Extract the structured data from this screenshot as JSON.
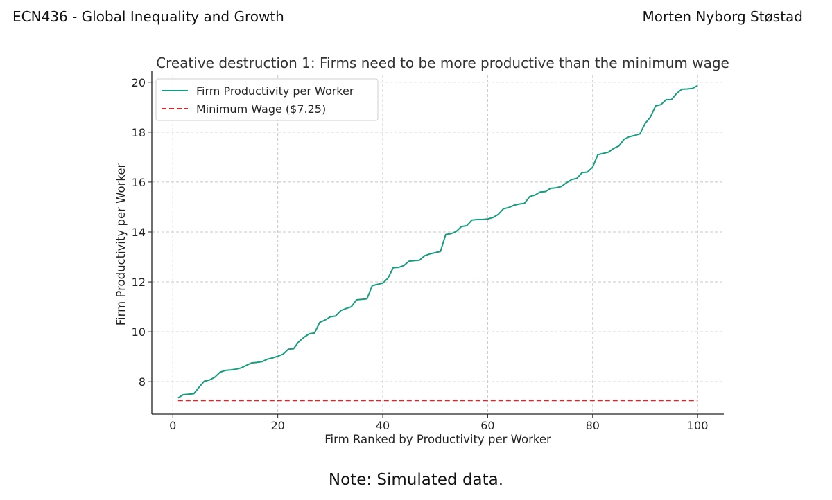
{
  "header": {
    "course": "ECN436 - Global Inequality and Growth",
    "author": "Morten Nyborg Støstad"
  },
  "note": "Note: Simulated data.",
  "chart_data": {
    "type": "line",
    "title": "Creative destruction 1: Firms need to be more productive than the minimum wage",
    "xlabel": "Firm Ranked by Productivity per Worker",
    "ylabel": "Firm Productivity per Worker",
    "xlim": [
      -4,
      105
    ],
    "ylim": [
      6.7,
      20.3
    ],
    "xticks": [
      0,
      20,
      40,
      60,
      80,
      100
    ],
    "yticks": [
      8,
      10,
      12,
      14,
      16,
      18,
      20
    ],
    "grid": true,
    "legend_position": "top-left",
    "series": [
      {
        "name": "Firm Productivity per Worker",
        "color": "#179c7d",
        "style": "solid",
        "x": [
          1,
          2,
          3,
          4,
          5,
          6,
          7,
          8,
          9,
          10,
          11,
          12,
          13,
          14,
          15,
          16,
          17,
          18,
          19,
          20,
          21,
          22,
          23,
          24,
          25,
          26,
          27,
          28,
          29,
          30,
          31,
          32,
          33,
          34,
          35,
          36,
          37,
          38,
          39,
          40,
          41,
          42,
          43,
          44,
          45,
          46,
          47,
          48,
          49,
          50,
          51,
          52,
          53,
          54,
          55,
          56,
          57,
          58,
          59,
          60,
          61,
          62,
          63,
          64,
          65,
          66,
          67,
          68,
          69,
          70,
          71,
          72,
          73,
          74,
          75,
          76,
          77,
          78,
          79,
          80,
          81,
          82,
          83,
          84,
          85,
          86,
          87,
          88,
          89,
          90,
          91,
          92,
          93,
          94,
          95,
          96,
          97,
          98,
          99,
          100
        ],
        "y": [
          7.35,
          7.48,
          7.5,
          7.52,
          7.78,
          8.02,
          8.07,
          8.18,
          8.38,
          8.45,
          8.47,
          8.5,
          8.55,
          8.65,
          8.75,
          8.77,
          8.8,
          8.9,
          8.95,
          9.02,
          9.1,
          9.3,
          9.32,
          9.6,
          9.78,
          9.92,
          9.95,
          10.38,
          10.47,
          10.6,
          10.63,
          10.85,
          10.93,
          11.0,
          11.28,
          11.3,
          11.32,
          11.85,
          11.9,
          11.95,
          12.15,
          12.57,
          12.58,
          12.65,
          12.83,
          12.85,
          12.87,
          13.05,
          13.12,
          13.17,
          13.22,
          13.9,
          13.93,
          14.02,
          14.22,
          14.25,
          14.48,
          14.5,
          14.5,
          14.52,
          14.58,
          14.7,
          14.93,
          14.98,
          15.07,
          15.12,
          15.15,
          15.42,
          15.48,
          15.6,
          15.62,
          15.75,
          15.77,
          15.82,
          15.97,
          16.1,
          16.15,
          16.38,
          16.4,
          16.6,
          17.1,
          17.15,
          17.2,
          17.35,
          17.45,
          17.72,
          17.82,
          17.87,
          17.93,
          18.35,
          18.6,
          19.05,
          19.1,
          19.3,
          19.3,
          19.55,
          19.72,
          19.73,
          19.75,
          19.87
        ]
      },
      {
        "name": "Minimum Wage ($7.25)",
        "color": "#d62728",
        "style": "dashed",
        "x": [
          1,
          100
        ],
        "y": [
          7.25,
          7.25
        ]
      }
    ]
  }
}
